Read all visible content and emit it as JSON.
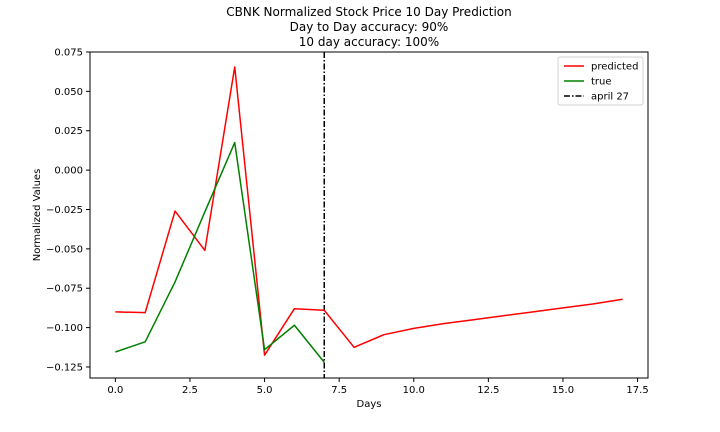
{
  "chart_data": {
    "type": "line",
    "title": "CBNK Normalized Stock Price 10 Day Prediction",
    "subtitle_lines": [
      "Day to Day accuracy: 90%",
      "10 day accuracy: 100%"
    ],
    "xlabel": "Days",
    "ylabel": "Normalized Values",
    "xlim": [
      -0.85,
      17.85
    ],
    "ylim": [
      -0.132,
      0.075
    ],
    "xticks": [
      0.0,
      2.5,
      5.0,
      7.5,
      10.0,
      12.5,
      15.0,
      17.5
    ],
    "xtick_labels": [
      "0.0",
      "2.5",
      "5.0",
      "7.5",
      "10.0",
      "12.5",
      "15.0",
      "17.5"
    ],
    "yticks": [
      0.075,
      0.05,
      0.025,
      0.0,
      -0.025,
      -0.05,
      -0.075,
      -0.1,
      -0.125
    ],
    "ytick_labels": [
      "0.075",
      "0.050",
      "0.025",
      "0.000",
      "−0.025",
      "−0.050",
      "−0.075",
      "−0.100",
      "−0.125"
    ],
    "grid": false,
    "legend_position": "top-right",
    "series": [
      {
        "name": "predicted",
        "color": "#ff0000",
        "x": [
          0,
          1,
          2,
          3,
          4,
          5,
          6,
          7,
          8,
          9,
          10,
          11,
          12,
          13,
          14,
          15,
          16,
          17
        ],
        "y": [
          -0.09,
          -0.0905,
          -0.026,
          -0.051,
          0.0655,
          -0.1175,
          -0.088,
          -0.089,
          -0.1125,
          -0.1045,
          -0.1005,
          -0.0975,
          -0.095,
          -0.0925,
          -0.09,
          -0.0875,
          -0.085,
          -0.082
        ]
      },
      {
        "name": "true",
        "color": "#008000",
        "x": [
          0,
          1,
          2,
          3,
          4,
          5,
          6,
          7
        ],
        "y": [
          -0.1155,
          -0.109,
          -0.071,
          -0.0265,
          0.0175,
          -0.114,
          -0.0985,
          -0.122
        ]
      }
    ],
    "vline": {
      "name": "april 27",
      "x": 7,
      "color": "#000000",
      "style": "dashdot"
    }
  }
}
